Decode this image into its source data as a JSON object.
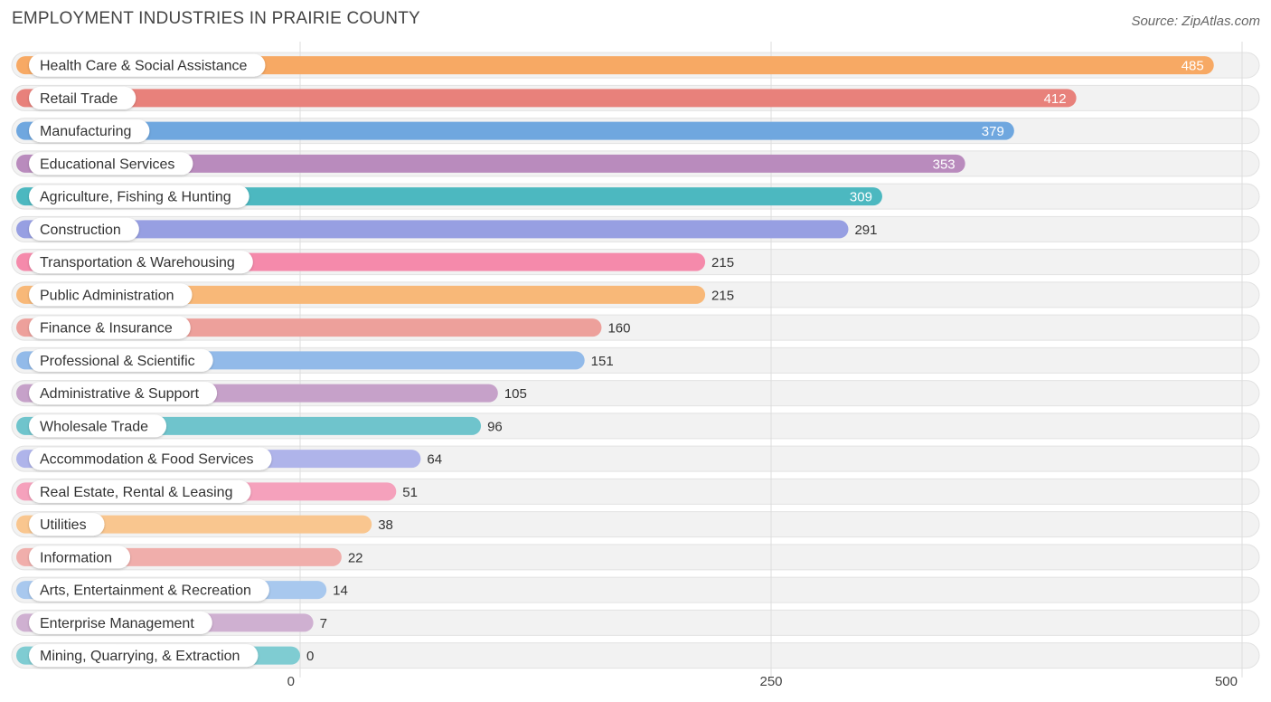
{
  "header": {
    "title": "EMPLOYMENT INDUSTRIES IN PRAIRIE COUNTY",
    "source": "Source: ZipAtlas.com"
  },
  "chart_data": {
    "type": "bar",
    "orientation": "horizontal",
    "title": "EMPLOYMENT INDUSTRIES IN PRAIRIE COUNTY",
    "xlabel": "",
    "ylabel": "",
    "xlim": [
      0,
      500
    ],
    "ticks": [
      0,
      250,
      500
    ],
    "grid": true,
    "categories": [
      "Health Care & Social Assistance",
      "Retail Trade",
      "Manufacturing",
      "Educational Services",
      "Agriculture, Fishing & Hunting",
      "Construction",
      "Transportation & Warehousing",
      "Public Administration",
      "Finance & Insurance",
      "Professional & Scientific",
      "Administrative & Support",
      "Wholesale Trade",
      "Accommodation & Food Services",
      "Real Estate, Rental & Leasing",
      "Utilities",
      "Information",
      "Arts, Entertainment & Recreation",
      "Enterprise Management",
      "Mining, Quarrying, & Extraction"
    ],
    "values": [
      485,
      412,
      379,
      353,
      309,
      291,
      215,
      215,
      160,
      151,
      105,
      96,
      64,
      51,
      38,
      22,
      14,
      7,
      0
    ],
    "colors": [
      "#f7a964",
      "#e8817b",
      "#6fa7df",
      "#b98bbd",
      "#4cb8c0",
      "#979fe2",
      "#f58aab",
      "#f8b878",
      "#eda09b",
      "#92bae9",
      "#c6a1c9",
      "#6fc4cc",
      "#afb4ea",
      "#f5a1bc",
      "#f9c68f",
      "#f0aeab",
      "#a8c8ee",
      "#cfb0d1",
      "#7fccd2"
    ]
  }
}
